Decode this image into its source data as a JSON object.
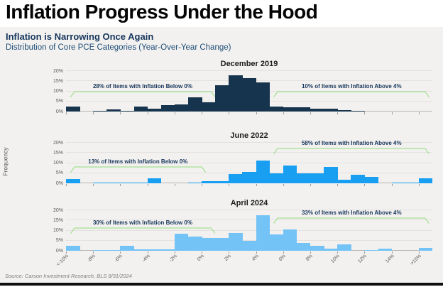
{
  "header": {
    "title": "Inflation Progress Under the Hood",
    "subtitle": "Inflation is Narrowing Once Again",
    "description": "Distribution of Core PCE Categories (Year-Over-Year Change)"
  },
  "source": "Source: Carson Investment Research, BLS 8/31/2024",
  "colors": {
    "dec_bars": "#17344e",
    "jun_bars": "#199ff2",
    "apr_bars": "#74c3f7",
    "bracket_green": "#a4e092",
    "accent_navy": "#17365d",
    "axis_text": "#595959",
    "panel_bg": "#f2f1ef"
  },
  "chart_data": {
    "type": "bar",
    "title": "Inflation is Narrowing Once Again",
    "subtitle": "Distribution of Core PCE Categories (Year-Over-Year Change)",
    "ylabel": "Frequency",
    "ylim": [
      0,
      20
    ],
    "grid": true,
    "y_tick_labels": [
      "0%",
      "5%",
      "10%",
      "15%",
      "20%"
    ],
    "x_tick_labels": [
      "<-10%",
      "-8%",
      "-6%",
      "-4%",
      "-2%",
      "0%",
      "2%",
      "4%",
      "6%",
      "8%",
      "10%",
      "12%",
      "14%",
      ">15%"
    ],
    "bins_per_panel": 27,
    "bin_width_pct": 1,
    "panels": [
      {
        "title": "December 2019",
        "color": "#17344e",
        "values": [
          2.5,
          0,
          0.5,
          1,
          0.5,
          2.5,
          1.5,
          3,
          3.5,
          7,
          4.5,
          13,
          18,
          16.5,
          14.5,
          2.5,
          2,
          2,
          1.5,
          1.5,
          0.7,
          0.4,
          0,
          0,
          0,
          0,
          0
        ],
        "annotations": [
          {
            "text": "28% of Items with Inflation Below 0%",
            "from_bin": 0.3,
            "to_bin": 11.0,
            "height_pct": 7.0
          },
          {
            "text": "10% of Items with Inflation Above 4%",
            "from_bin": 15.3,
            "to_bin": 26.8,
            "height_pct": 7.0
          }
        ]
      },
      {
        "title": "June 2022",
        "color": "#199ff2",
        "values": [
          2,
          0,
          0.4,
          0.4,
          0.4,
          0.4,
          2.5,
          0,
          0,
          0.5,
          1,
          1,
          4.5,
          5.5,
          11.2,
          4.8,
          8.8,
          5,
          5,
          8.2,
          1.8,
          4.2,
          3,
          0,
          0.5,
          0.3,
          2.5
        ],
        "annotations": [
          {
            "text": "13% of Items with Inflation Below 0%",
            "from_bin": 0.3,
            "to_bin": 10.3,
            "height_pct": 5.3
          },
          {
            "text": "58% of Items with Inflation Above 4%",
            "from_bin": 15.3,
            "to_bin": 26.8,
            "height_pct": 14.4
          }
        ]
      },
      {
        "title": "April 2024",
        "color": "#74c3f7",
        "values": [
          2.5,
          0,
          0.5,
          0.5,
          2.5,
          0.8,
          0.8,
          0.8,
          8.5,
          7,
          6.3,
          6.3,
          8.8,
          5,
          17.5,
          8,
          10.5,
          4,
          2.5,
          1,
          3,
          0,
          0.5,
          1,
          0,
          0,
          1.5
        ],
        "annotations": [
          {
            "text": "30% of Items with Inflation Below 0%",
            "from_bin": 0.3,
            "to_bin": 11.0,
            "height_pct": 8.6
          },
          {
            "text": "33% of Items with Inflation Above 4%",
            "from_bin": 15.3,
            "to_bin": 26.8,
            "height_pct": 13.2
          }
        ]
      }
    ]
  }
}
